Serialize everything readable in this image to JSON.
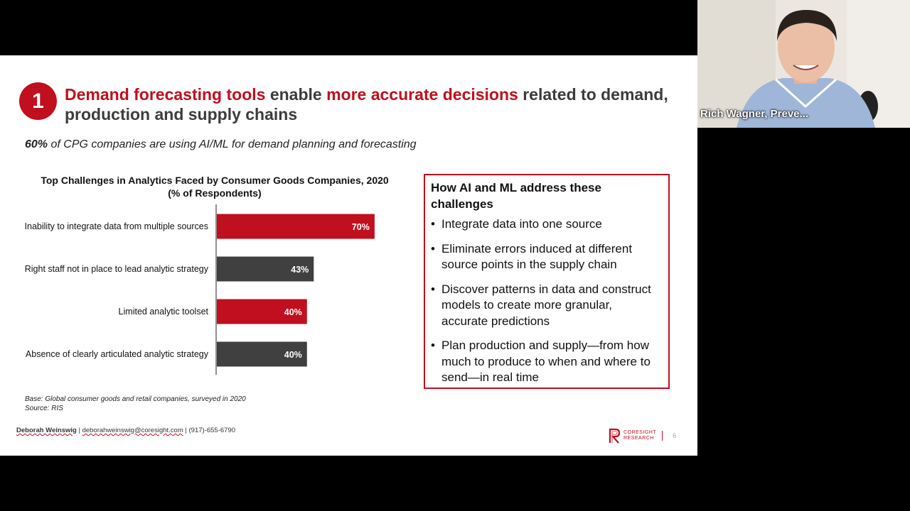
{
  "slide": {
    "number": "1",
    "headline": {
      "part1": "Demand forecasting tools",
      "part2": " enable ",
      "part3": "more accurate decisions",
      "part4": " related to demand, production and supply chains"
    },
    "subhead": {
      "stat": "60%",
      "text": " of CPG companies are using AI/ML for demand planning and forecasting"
    },
    "chart_title_line1": "Top Challenges in Analytics Faced by Consumer Goods Companies, 2020",
    "chart_title_line2": "(% of Respondents)",
    "footnote_base": "Base: Global consumer goods and retail companies, surveyed in 2020",
    "footnote_source": "Source: RIS",
    "box": {
      "title": "How AI and ML address these challenges",
      "bullets": [
        "Integrate data into one source",
        "Eliminate errors induced at different source points in the supply chain",
        "Discover patterns in data and construct models to create more granular, accurate predictions",
        "Plan production and supply—from how much to produce to when and where to send—in real time"
      ]
    },
    "contact": {
      "name": "Deborah Weinswig",
      "sep1": " | ",
      "email": "deborahweinswig@coresight.com",
      "sep2": " | ",
      "phone": "(917)-655-6790"
    },
    "logo_line1": "CORESIGHT",
    "logo_line2": "RESEARCH",
    "page_number": "6"
  },
  "chart_data": {
    "type": "bar",
    "orientation": "horizontal",
    "categories": [
      "Inability to integrate data from multiple sources",
      "Right staff not in place to lead analytic strategy",
      "Limited analytic toolset",
      "Absence of clearly articulated analytic strategy"
    ],
    "values": [
      70,
      43,
      40,
      40
    ],
    "labels": [
      "70%",
      "43%",
      "40%",
      "40%"
    ],
    "colors": [
      "#c00f1e",
      "#404040",
      "#c00f1e",
      "#404040"
    ],
    "xlim": [
      0,
      100
    ],
    "title": "Top Challenges in Analytics Faced by Consumer Goods Companies, 2020",
    "subtitle": "(% of Respondents)"
  },
  "participant": {
    "name": "Rich Wagner, Preve..."
  },
  "colors": {
    "accent": "#c00f1e",
    "dark_bar": "#404040"
  }
}
